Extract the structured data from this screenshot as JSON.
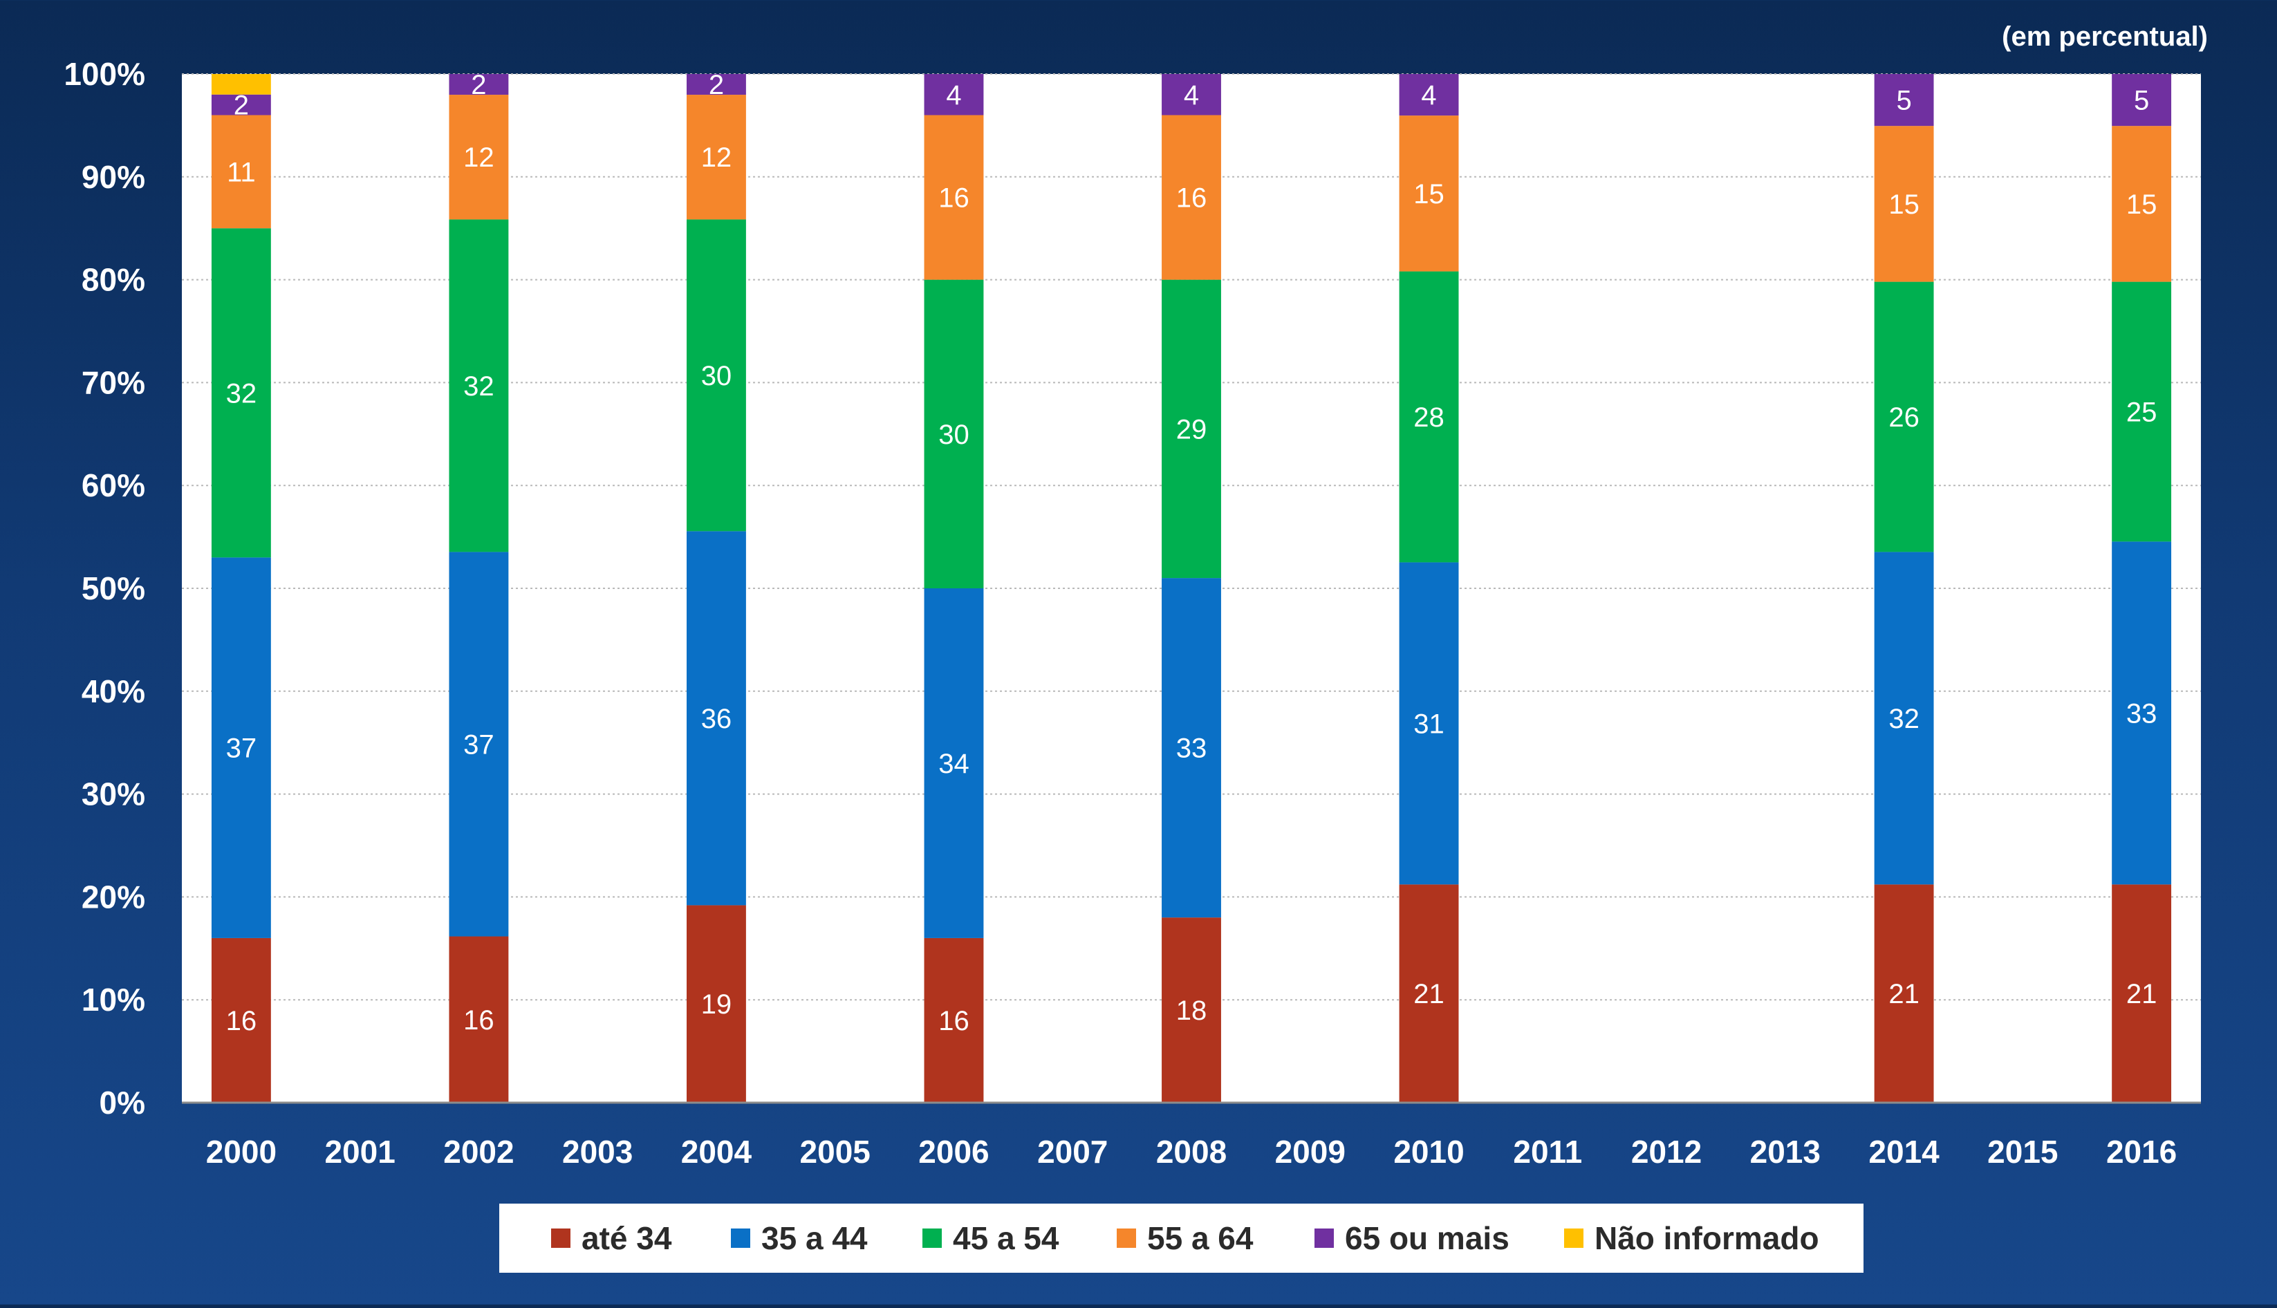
{
  "chart_data": {
    "type": "bar",
    "stacked": true,
    "unit_note": "(em percentual)",
    "categories": [
      "2000",
      "2001",
      "2002",
      "2003",
      "2004",
      "2005",
      "2006",
      "2007",
      "2008",
      "2009",
      "2010",
      "2011",
      "2012",
      "2013",
      "2014",
      "2015",
      "2016"
    ],
    "y_ticks": [
      "0%",
      "10%",
      "20%",
      "30%",
      "40%",
      "50%",
      "60%",
      "70%",
      "80%",
      "90%",
      "100%"
    ],
    "ylim": [
      0,
      100
    ],
    "grid": true,
    "legend_position": "bottom",
    "series": [
      {
        "name": "até 34",
        "color": "#b0341e",
        "values": [
          16,
          null,
          16,
          null,
          19,
          null,
          16,
          null,
          18,
          null,
          21,
          null,
          null,
          null,
          21,
          null,
          21
        ]
      },
      {
        "name": "35 a 44",
        "color": "#0a70c6",
        "values": [
          37,
          null,
          37,
          null,
          36,
          null,
          34,
          null,
          33,
          null,
          31,
          null,
          null,
          null,
          32,
          null,
          33
        ]
      },
      {
        "name": "45 a 54",
        "color": "#00b050",
        "values": [
          32,
          null,
          32,
          null,
          30,
          null,
          30,
          null,
          29,
          null,
          28,
          null,
          null,
          null,
          26,
          null,
          25
        ]
      },
      {
        "name": "55 a 64",
        "color": "#f5862b",
        "values": [
          11,
          null,
          12,
          null,
          12,
          null,
          16,
          null,
          16,
          null,
          15,
          null,
          null,
          null,
          15,
          null,
          15
        ]
      },
      {
        "name": "65 ou mais",
        "color": "#7030a0",
        "values": [
          2,
          null,
          2,
          null,
          2,
          null,
          4,
          null,
          4,
          null,
          4,
          null,
          null,
          null,
          5,
          null,
          5
        ]
      },
      {
        "name": "Não informado",
        "color": "#ffc000",
        "values": [
          2,
          null,
          0,
          null,
          0,
          null,
          0,
          null,
          0,
          null,
          0,
          null,
          null,
          null,
          0,
          null,
          0
        ]
      }
    ],
    "data_labels": [
      [
        "16",
        "37",
        "32",
        "11",
        "2",
        ""
      ],
      null,
      [
        "16",
        "37",
        "32",
        "12",
        "2",
        ""
      ],
      null,
      [
        "19",
        "36",
        "30",
        "12",
        "2",
        ""
      ],
      null,
      [
        "16",
        "34",
        "30",
        "16",
        "4",
        ""
      ],
      null,
      [
        "18",
        "33",
        "29",
        "16",
        "4",
        ""
      ],
      null,
      [
        "21",
        "31",
        "28",
        "15",
        "4",
        ""
      ],
      null,
      null,
      null,
      [
        "21",
        "32",
        "26",
        "15",
        "5",
        ""
      ],
      null,
      [
        "21",
        "33",
        "25",
        "15",
        "5",
        ""
      ]
    ]
  }
}
